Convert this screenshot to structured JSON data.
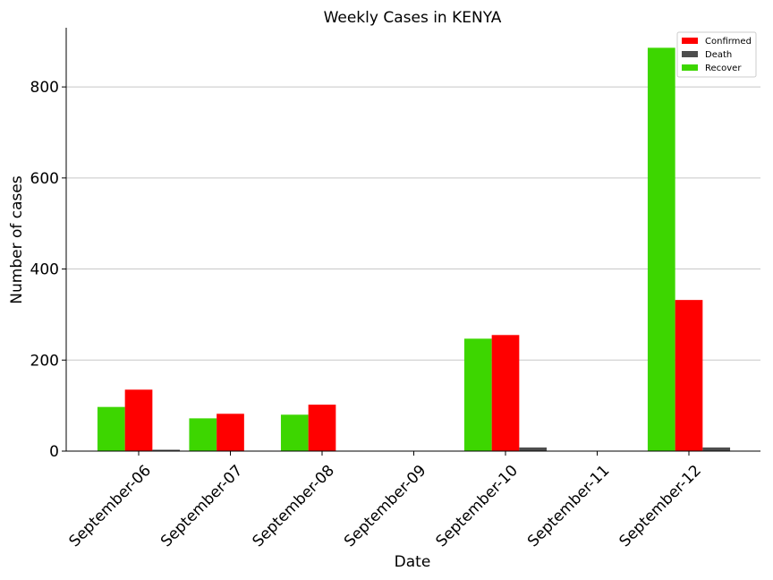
{
  "chart_data": {
    "type": "bar",
    "title": "Weekly Cases in KENYA",
    "xlabel": "Date",
    "ylabel": "Number of cases",
    "categories": [
      "September-06",
      "September-07",
      "September-08",
      "September-09",
      "September-10",
      "September-11",
      "September-12"
    ],
    "series": [
      {
        "name": "Recover",
        "color": "#3dd600",
        "values": [
          97,
          72,
          80,
          0,
          247,
          0,
          886
        ]
      },
      {
        "name": "Confirmed",
        "color": "#ff0000",
        "values": [
          135,
          82,
          102,
          0,
          255,
          0,
          332
        ]
      },
      {
        "name": "Death",
        "color": "#4d4d4d",
        "values": [
          3,
          1,
          1,
          0,
          8,
          0,
          8
        ]
      }
    ],
    "legend_order": [
      "Confirmed",
      "Death",
      "Recover"
    ],
    "ylim": [
      0,
      930
    ],
    "yticks": [
      0,
      200,
      400,
      600,
      800
    ],
    "grid": "horizontal",
    "legend_position": "top-right"
  }
}
